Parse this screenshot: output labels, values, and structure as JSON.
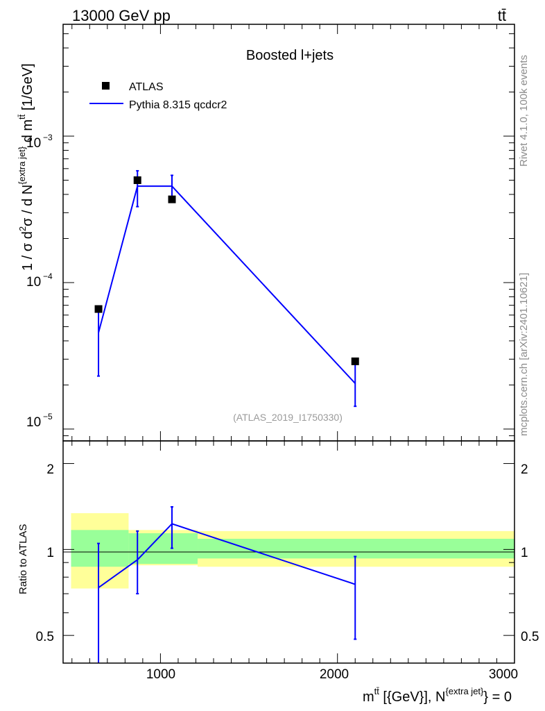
{
  "header": {
    "energy_label": "13000 GeV pp",
    "process_label": "tt̄"
  },
  "side_labels": {
    "rivet": "Rivet 4.1.0,  100k events",
    "mcplots": "mcplots.cern.ch [arXiv:2401.10621]"
  },
  "chart_data": [
    {
      "type": "scatter",
      "panel": "main",
      "title": "Boosted l+jets",
      "reference_id": "(ATLAS_2019_I1750330)",
      "ylabel": "1 / σ d²σ / d N^{extra jet} d m^{tt̄} [1/GeV]",
      "yscale": "log",
      "xlim": [
        450,
        3000
      ],
      "ylim": [
        8.3e-06,
        0.0058
      ],
      "ytick_labels": [
        "10^-3",
        "10^-4",
        "10^-5"
      ],
      "legend_position": "top-left",
      "series": [
        {
          "name": "ATLAS",
          "kind": "markers",
          "color": "#000000",
          "x": [
            650,
            870,
            1065,
            2100
          ],
          "y": [
            6.6e-05,
            0.0005,
            0.00037,
            2.9e-05
          ]
        },
        {
          "name": "Pythia 8.315 qcdcr2",
          "kind": "line",
          "color": "#0000ff",
          "x": [
            650,
            870,
            1065,
            2100
          ],
          "y": [
            4.55e-05,
            0.000455,
            0.000455,
            2.05e-05
          ],
          "err_low": [
            2.3e-05,
            0.00033,
            0.00037,
            1.43e-05
          ],
          "err_high": [
            6.6e-05,
            0.00058,
            0.00054,
            2.9e-05
          ]
        }
      ],
      "legend": [
        {
          "label": "ATLAS",
          "marker": "square"
        },
        {
          "label": "Pythia 8.315 qcdcr2",
          "marker": "line"
        }
      ]
    },
    {
      "type": "line",
      "panel": "ratio",
      "ylabel": "Ratio to ATLAS",
      "xlabel": "m^{tt̄} [{GeV}], N^{extra jet} = 0",
      "xlim": [
        450,
        3000
      ],
      "ylim": [
        0.4,
        2.4
      ],
      "yscale": "log",
      "x_ticks": [
        1000,
        2000,
        3000
      ],
      "x_tick_labels": [
        "1000",
        "2000",
        "3000"
      ],
      "y_ticks": [
        0.5,
        1,
        2
      ],
      "y_tick_labels": [
        "0.5",
        "1",
        "2"
      ],
      "bins": [
        {
          "low": 495,
          "high": 820,
          "inner": [
            0.87,
            1.17
          ],
          "outer": [
            0.73,
            1.34
          ]
        },
        {
          "low": 820,
          "high": 1210,
          "inner": [
            0.89,
            1.14
          ],
          "outer": [
            0.88,
            1.17
          ]
        },
        {
          "low": 1210,
          "high": 3000,
          "inner": [
            0.93,
            1.09
          ],
          "outer": [
            0.87,
            1.16
          ]
        }
      ],
      "series": [
        {
          "name": "Pythia 8.315 qcdcr2",
          "color": "#0000ff",
          "x": [
            650,
            870,
            1065,
            2100
          ],
          "y": [
            0.735,
            0.92,
            1.23,
            0.755
          ],
          "err_low": [
            0.38,
            0.7,
            1.01,
            0.485
          ],
          "err_high": [
            1.05,
            1.16,
            1.41,
            0.945
          ]
        }
      ]
    }
  ]
}
